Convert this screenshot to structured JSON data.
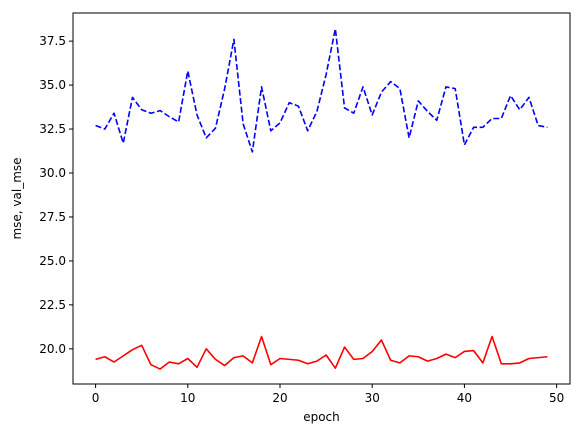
{
  "chart_data": {
    "type": "line",
    "xlabel": "epoch",
    "ylabel": "mse, val_mse",
    "xlim": [
      -2.45,
      51.45
    ],
    "ylim": [
      18.0,
      39.1
    ],
    "xticks": [
      0,
      10,
      20,
      30,
      40,
      50
    ],
    "yticks": [
      20.0,
      22.5,
      25.0,
      27.5,
      30.0,
      32.5,
      35.0,
      37.5
    ],
    "grid": false,
    "legend": "none",
    "x": [
      0,
      1,
      2,
      3,
      4,
      5,
      6,
      7,
      8,
      9,
      10,
      11,
      12,
      13,
      14,
      15,
      16,
      17,
      18,
      19,
      20,
      21,
      22,
      23,
      24,
      25,
      26,
      27,
      28,
      29,
      30,
      31,
      32,
      33,
      34,
      35,
      36,
      37,
      38,
      39,
      40,
      41,
      42,
      43,
      44,
      45,
      46,
      47,
      48,
      49
    ],
    "series": [
      {
        "color": "#ff0000",
        "style": "solid",
        "values": [
          19.4,
          19.55,
          19.25,
          19.6,
          19.95,
          20.2,
          19.1,
          18.85,
          19.25,
          19.15,
          19.45,
          18.95,
          20.0,
          19.4,
          19.05,
          19.5,
          19.6,
          19.2,
          20.7,
          19.1,
          19.45,
          19.4,
          19.35,
          19.15,
          19.3,
          19.65,
          18.9,
          20.1,
          19.4,
          19.45,
          19.85,
          20.5,
          19.35,
          19.2,
          19.6,
          19.55,
          19.3,
          19.45,
          19.7,
          19.5,
          19.85,
          19.9,
          19.2,
          20.7,
          19.15,
          19.15,
          19.2,
          19.45,
          19.5,
          19.55
        ]
      },
      {
        "color": "#0000ff",
        "style": "dashed",
        "values": [
          32.7,
          32.5,
          33.4,
          31.7,
          34.3,
          33.6,
          33.4,
          33.55,
          33.2,
          32.9,
          35.8,
          33.3,
          32.0,
          32.55,
          34.8,
          37.6,
          32.8,
          31.2,
          34.9,
          32.4,
          32.85,
          34.0,
          33.8,
          32.4,
          33.5,
          35.6,
          38.2,
          33.7,
          33.4,
          34.9,
          33.3,
          34.6,
          35.2,
          34.8,
          32.0,
          34.1,
          33.5,
          33.0,
          34.9,
          34.8,
          31.6,
          32.6,
          32.6,
          33.1,
          33.1,
          34.4,
          33.6,
          34.3,
          32.7,
          32.6
        ]
      }
    ]
  }
}
